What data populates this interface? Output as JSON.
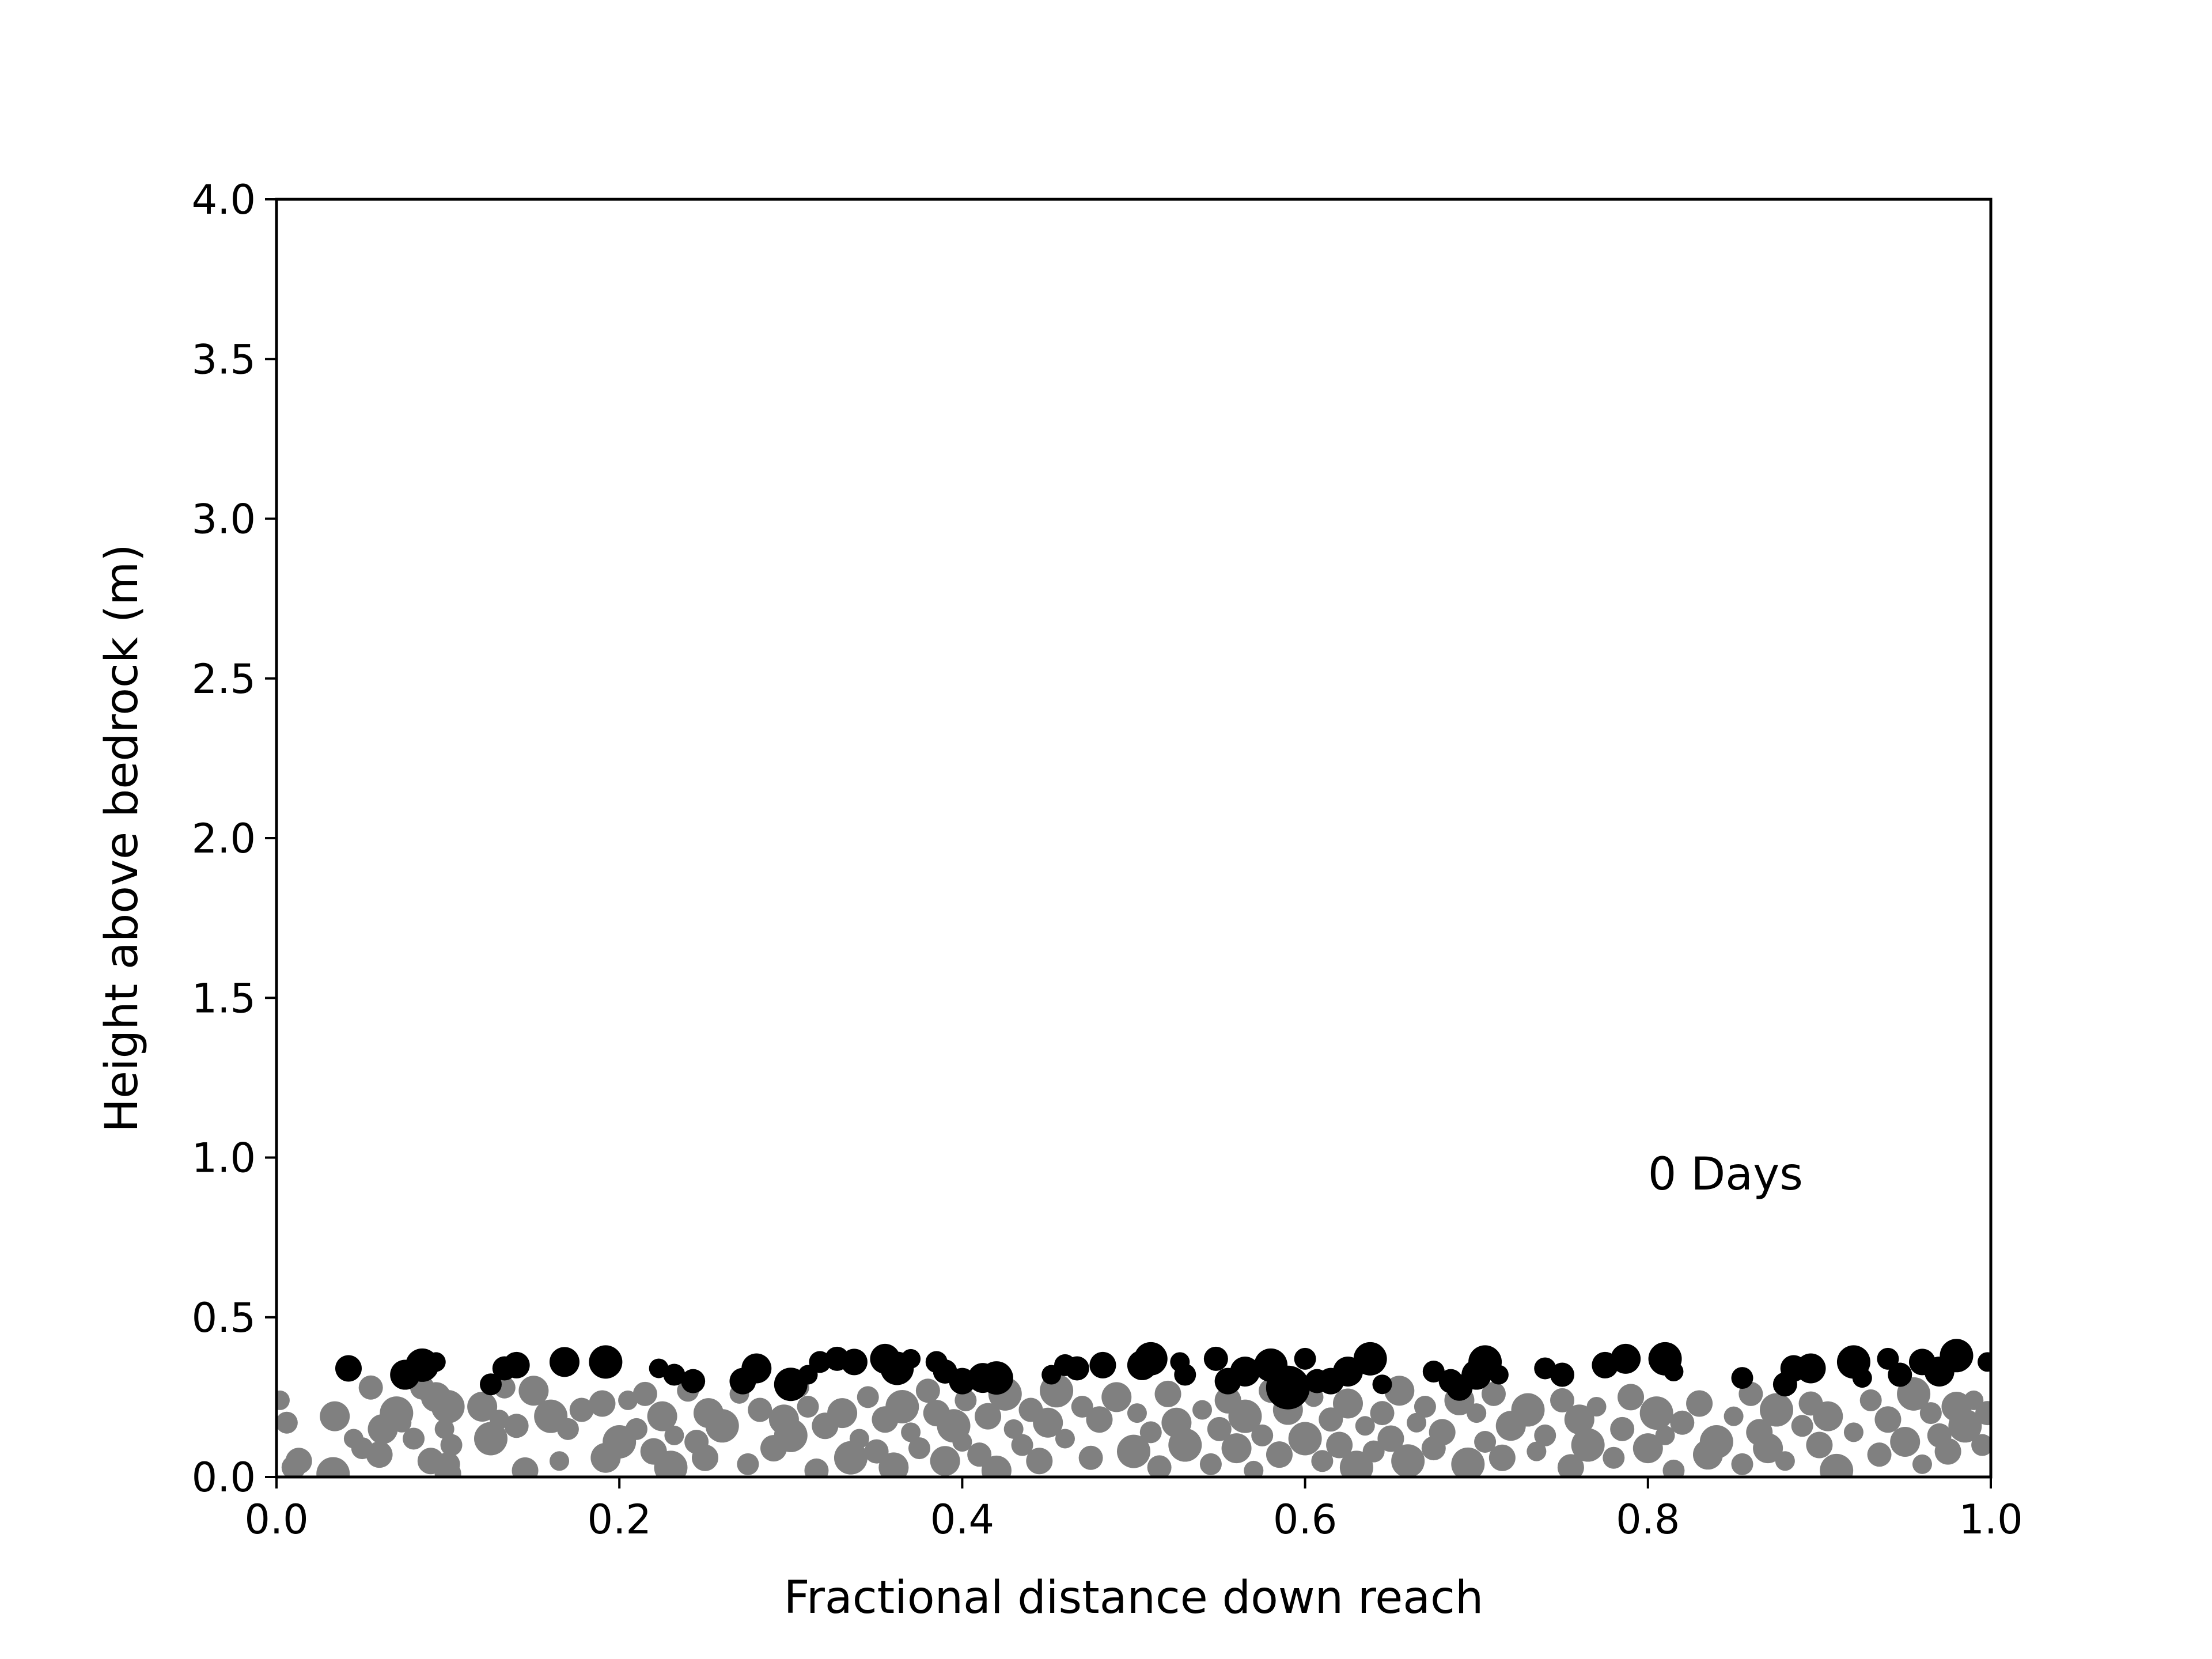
{
  "chart_data": {
    "type": "scatter",
    "title": "",
    "xlabel": "Fractional distance down reach",
    "ylabel": "Height above bedrock (m)",
    "xlim": [
      0.0,
      1.0
    ],
    "ylim": [
      0.0,
      4.0
    ],
    "xticks": [
      "0.0",
      "0.2",
      "0.4",
      "0.6",
      "0.8",
      "1.0"
    ],
    "yticks": [
      "0.0",
      "0.5",
      "1.0",
      "1.5",
      "2.0",
      "2.5",
      "3.0",
      "3.5",
      "4.0"
    ],
    "grid": false,
    "annotation": {
      "text": "0 Days",
      "x": 0.8,
      "y": 0.9
    },
    "series": [
      {
        "color": "#808080",
        "points": [
          [
            0.002,
            0.24
          ],
          [
            0.006,
            0.17
          ],
          [
            0.01,
            0.03
          ],
          [
            0.013,
            0.05
          ],
          [
            0.034,
            0.19
          ],
          [
            0.033,
            0.01
          ],
          [
            0.045,
            0.12
          ],
          [
            0.05,
            0.09
          ],
          [
            0.055,
            0.28
          ],
          [
            0.06,
            0.07
          ],
          [
            0.062,
            0.15
          ],
          [
            0.07,
            0.2
          ],
          [
            0.073,
            0.17
          ],
          [
            0.08,
            0.12
          ],
          [
            0.085,
            0.28
          ],
          [
            0.09,
            0.05
          ],
          [
            0.093,
            0.25
          ],
          [
            0.1,
            0.22
          ],
          [
            0.098,
            0.15
          ],
          [
            0.102,
            0.1
          ],
          [
            0.1,
            0.04
          ],
          [
            0.1,
            0.01
          ],
          [
            0.12,
            0.22
          ],
          [
            0.125,
            0.12
          ],
          [
            0.13,
            0.18
          ],
          [
            0.133,
            0.28
          ],
          [
            0.14,
            0.16
          ],
          [
            0.145,
            0.02
          ],
          [
            0.15,
            0.27
          ],
          [
            0.16,
            0.19
          ],
          [
            0.165,
            0.05
          ],
          [
            0.17,
            0.15
          ],
          [
            0.178,
            0.21
          ],
          [
            0.19,
            0.23
          ],
          [
            0.192,
            0.06
          ],
          [
            0.2,
            0.11
          ],
          [
            0.205,
            0.24
          ],
          [
            0.21,
            0.15
          ],
          [
            0.215,
            0.26
          ],
          [
            0.22,
            0.08
          ],
          [
            0.225,
            0.19
          ],
          [
            0.23,
            0.03
          ],
          [
            0.232,
            0.13
          ],
          [
            0.24,
            0.27
          ],
          [
            0.245,
            0.11
          ],
          [
            0.25,
            0.06
          ],
          [
            0.252,
            0.2
          ],
          [
            0.26,
            0.16
          ],
          [
            0.27,
            0.26
          ],
          [
            0.275,
            0.04
          ],
          [
            0.282,
            0.21
          ],
          [
            0.29,
            0.09
          ],
          [
            0.296,
            0.18
          ],
          [
            0.3,
            0.13
          ],
          [
            0.305,
            0.28
          ],
          [
            0.31,
            0.22
          ],
          [
            0.315,
            0.02
          ],
          [
            0.32,
            0.16
          ],
          [
            0.33,
            0.2
          ],
          [
            0.335,
            0.06
          ],
          [
            0.34,
            0.12
          ],
          [
            0.345,
            0.25
          ],
          [
            0.35,
            0.08
          ],
          [
            0.355,
            0.18
          ],
          [
            0.36,
            0.03
          ],
          [
            0.365,
            0.22
          ],
          [
            0.37,
            0.14
          ],
          [
            0.375,
            0.09
          ],
          [
            0.38,
            0.27
          ],
          [
            0.385,
            0.2
          ],
          [
            0.39,
            0.05
          ],
          [
            0.395,
            0.16
          ],
          [
            0.4,
            0.11
          ],
          [
            0.402,
            0.24
          ],
          [
            0.41,
            0.07
          ],
          [
            0.415,
            0.19
          ],
          [
            0.42,
            0.02
          ],
          [
            0.425,
            0.26
          ],
          [
            0.43,
            0.15
          ],
          [
            0.435,
            0.1
          ],
          [
            0.44,
            0.21
          ],
          [
            0.445,
            0.05
          ],
          [
            0.45,
            0.17
          ],
          [
            0.455,
            0.27
          ],
          [
            0.46,
            0.12
          ],
          [
            0.47,
            0.22
          ],
          [
            0.475,
            0.06
          ],
          [
            0.48,
            0.18
          ],
          [
            0.49,
            0.25
          ],
          [
            0.5,
            0.08
          ],
          [
            0.502,
            0.2
          ],
          [
            0.51,
            0.14
          ],
          [
            0.515,
            0.03
          ],
          [
            0.52,
            0.26
          ],
          [
            0.525,
            0.17
          ],
          [
            0.53,
            0.1
          ],
          [
            0.54,
            0.21
          ],
          [
            0.545,
            0.04
          ],
          [
            0.55,
            0.15
          ],
          [
            0.555,
            0.24
          ],
          [
            0.56,
            0.09
          ],
          [
            0.565,
            0.19
          ],
          [
            0.57,
            0.02
          ],
          [
            0.575,
            0.13
          ],
          [
            0.58,
            0.27
          ],
          [
            0.585,
            0.07
          ],
          [
            0.59,
            0.21
          ],
          [
            0.6,
            0.12
          ],
          [
            0.605,
            0.25
          ],
          [
            0.61,
            0.05
          ],
          [
            0.615,
            0.18
          ],
          [
            0.62,
            0.1
          ],
          [
            0.625,
            0.23
          ],
          [
            0.63,
            0.03
          ],
          [
            0.635,
            0.16
          ],
          [
            0.64,
            0.08
          ],
          [
            0.645,
            0.2
          ],
          [
            0.65,
            0.12
          ],
          [
            0.655,
            0.27
          ],
          [
            0.66,
            0.05
          ],
          [
            0.665,
            0.17
          ],
          [
            0.67,
            0.22
          ],
          [
            0.675,
            0.09
          ],
          [
            0.68,
            0.14
          ],
          [
            0.69,
            0.24
          ],
          [
            0.695,
            0.04
          ],
          [
            0.7,
            0.2
          ],
          [
            0.705,
            0.11
          ],
          [
            0.71,
            0.26
          ],
          [
            0.715,
            0.06
          ],
          [
            0.72,
            0.16
          ],
          [
            0.73,
            0.21
          ],
          [
            0.735,
            0.08
          ],
          [
            0.74,
            0.13
          ],
          [
            0.75,
            0.24
          ],
          [
            0.755,
            0.03
          ],
          [
            0.76,
            0.18
          ],
          [
            0.765,
            0.1
          ],
          [
            0.77,
            0.22
          ],
          [
            0.78,
            0.06
          ],
          [
            0.785,
            0.15
          ],
          [
            0.79,
            0.25
          ],
          [
            0.8,
            0.09
          ],
          [
            0.805,
            0.2
          ],
          [
            0.81,
            0.13
          ],
          [
            0.815,
            0.02
          ],
          [
            0.82,
            0.17
          ],
          [
            0.83,
            0.23
          ],
          [
            0.835,
            0.07
          ],
          [
            0.84,
            0.11
          ],
          [
            0.85,
            0.19
          ],
          [
            0.855,
            0.04
          ],
          [
            0.86,
            0.26
          ],
          [
            0.865,
            0.14
          ],
          [
            0.87,
            0.09
          ],
          [
            0.875,
            0.21
          ],
          [
            0.88,
            0.05
          ],
          [
            0.89,
            0.16
          ],
          [
            0.895,
            0.23
          ],
          [
            0.9,
            0.1
          ],
          [
            0.905,
            0.19
          ],
          [
            0.91,
            0.02
          ],
          [
            0.92,
            0.14
          ],
          [
            0.93,
            0.24
          ],
          [
            0.935,
            0.07
          ],
          [
            0.94,
            0.18
          ],
          [
            0.95,
            0.11
          ],
          [
            0.955,
            0.26
          ],
          [
            0.96,
            0.04
          ],
          [
            0.965,
            0.2
          ],
          [
            0.97,
            0.13
          ],
          [
            0.975,
            0.08
          ],
          [
            0.98,
            0.22
          ],
          [
            0.985,
            0.16
          ],
          [
            0.99,
            0.24
          ],
          [
            0.995,
            0.1
          ],
          [
            0.998,
            0.2
          ]
        ]
      },
      {
        "color": "#000000",
        "points": [
          [
            0.042,
            0.34
          ],
          [
            0.075,
            0.32
          ],
          [
            0.085,
            0.35
          ],
          [
            0.093,
            0.36
          ],
          [
            0.125,
            0.29
          ],
          [
            0.133,
            0.34
          ],
          [
            0.14,
            0.35
          ],
          [
            0.168,
            0.36
          ],
          [
            0.192,
            0.36
          ],
          [
            0.223,
            0.34
          ],
          [
            0.232,
            0.32
          ],
          [
            0.243,
            0.3
          ],
          [
            0.272,
            0.3
          ],
          [
            0.28,
            0.34
          ],
          [
            0.3,
            0.29
          ],
          [
            0.31,
            0.32
          ],
          [
            0.317,
            0.36
          ],
          [
            0.327,
            0.37
          ],
          [
            0.337,
            0.36
          ],
          [
            0.355,
            0.37
          ],
          [
            0.362,
            0.34
          ],
          [
            0.37,
            0.37
          ],
          [
            0.385,
            0.36
          ],
          [
            0.39,
            0.33
          ],
          [
            0.4,
            0.3
          ],
          [
            0.412,
            0.31
          ],
          [
            0.42,
            0.31
          ],
          [
            0.452,
            0.32
          ],
          [
            0.46,
            0.35
          ],
          [
            0.467,
            0.34
          ],
          [
            0.482,
            0.35
          ],
          [
            0.505,
            0.35
          ],
          [
            0.51,
            0.37
          ],
          [
            0.527,
            0.36
          ],
          [
            0.53,
            0.32
          ],
          [
            0.548,
            0.37
          ],
          [
            0.555,
            0.3
          ],
          [
            0.565,
            0.33
          ],
          [
            0.58,
            0.35
          ],
          [
            0.59,
            0.28
          ],
          [
            0.6,
            0.37
          ],
          [
            0.607,
            0.3
          ],
          [
            0.615,
            0.3
          ],
          [
            0.625,
            0.33
          ],
          [
            0.638,
            0.37
          ],
          [
            0.645,
            0.29
          ],
          [
            0.675,
            0.33
          ],
          [
            0.685,
            0.3
          ],
          [
            0.69,
            0.28
          ],
          [
            0.7,
            0.32
          ],
          [
            0.705,
            0.36
          ],
          [
            0.713,
            0.32
          ],
          [
            0.74,
            0.34
          ],
          [
            0.75,
            0.32
          ],
          [
            0.775,
            0.35
          ],
          [
            0.787,
            0.37
          ],
          [
            0.81,
            0.37
          ],
          [
            0.815,
            0.33
          ],
          [
            0.855,
            0.31
          ],
          [
            0.88,
            0.29
          ],
          [
            0.885,
            0.34
          ],
          [
            0.895,
            0.34
          ],
          [
            0.92,
            0.36
          ],
          [
            0.925,
            0.31
          ],
          [
            0.94,
            0.37
          ],
          [
            0.947,
            0.32
          ],
          [
            0.96,
            0.36
          ],
          [
            0.97,
            0.33
          ],
          [
            0.98,
            0.38
          ],
          [
            0.998,
            0.36
          ]
        ]
      }
    ]
  }
}
